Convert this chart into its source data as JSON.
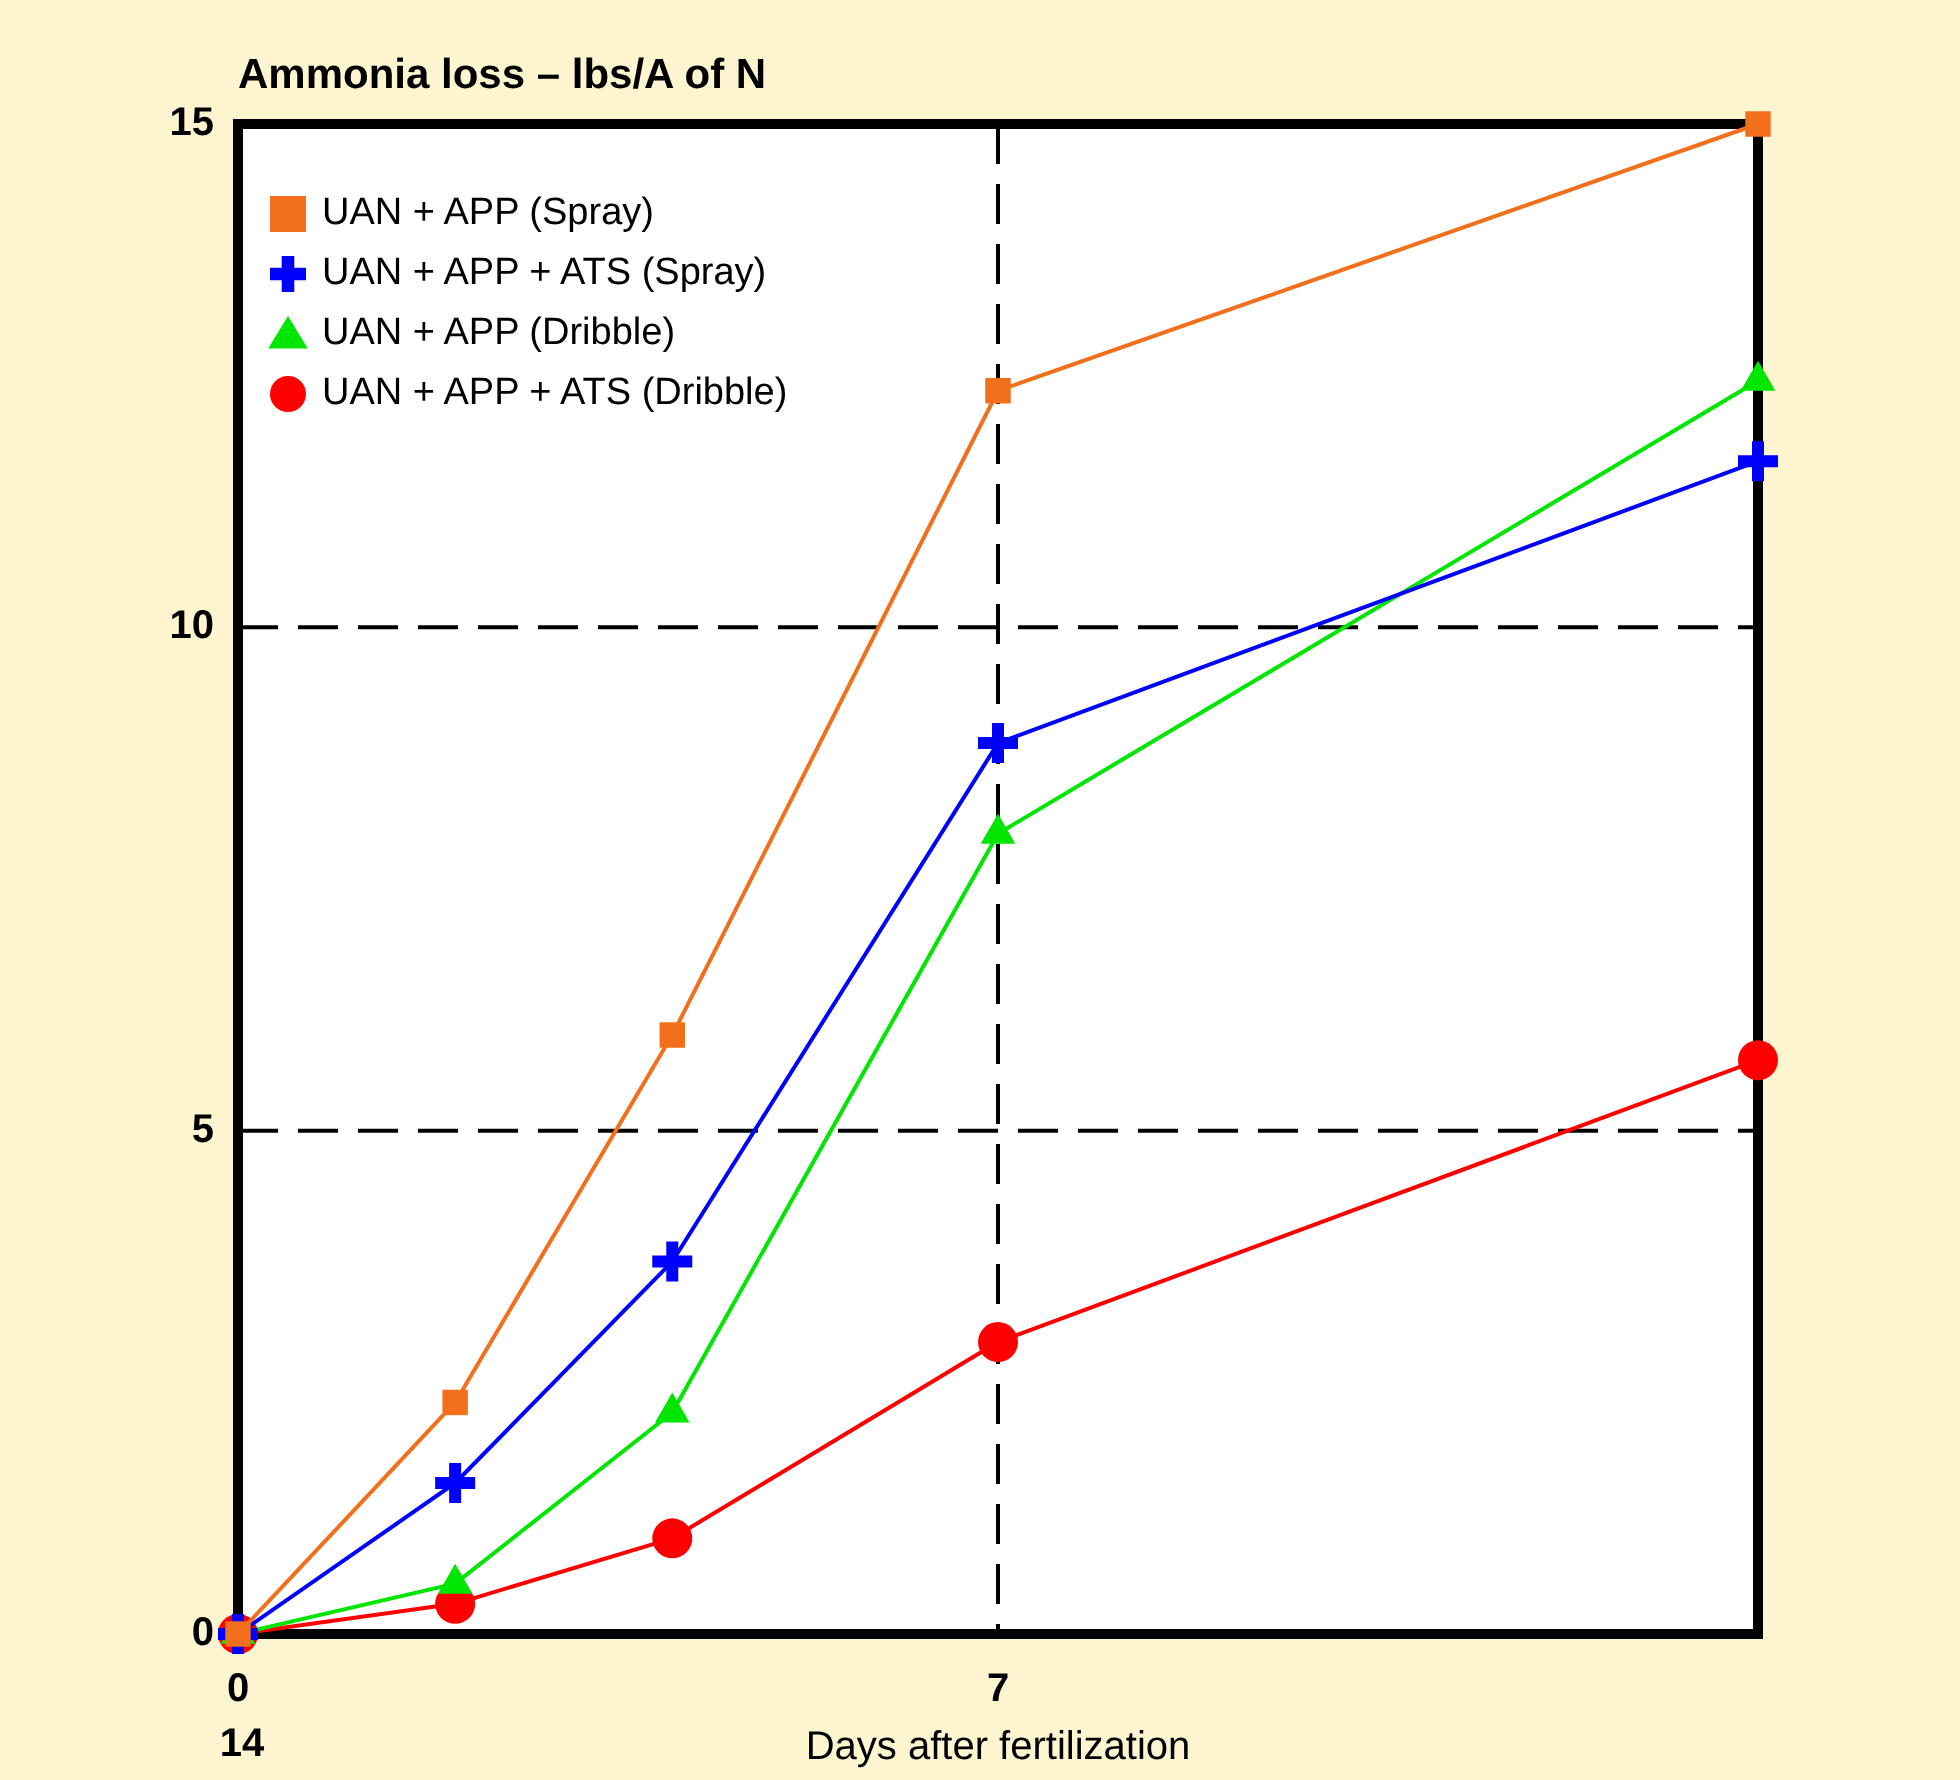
{
  "chart_data": {
    "type": "line",
    "title": "Ammonia loss – lbs/A of N",
    "xlabel": "Days after fertilization",
    "x": [
      0,
      2,
      4,
      7,
      14
    ],
    "series": [
      {
        "name": "UAN + APP (Spray)",
        "color": "#f26f1b",
        "marker": "square",
        "values": [
          0,
          2.3,
          5.95,
          12.35,
          15
        ]
      },
      {
        "name": "UAN + APP + ATS (Spray)",
        "color": "#0000ff",
        "marker": "cross",
        "values": [
          0,
          1.5,
          3.7,
          8.85,
          11.65
        ]
      },
      {
        "name": "UAN + APP (Dribble)",
        "color": "#00e600",
        "marker": "triangle",
        "values": [
          0,
          0.5,
          2.2,
          7.95,
          12.45
        ]
      },
      {
        "name": "UAN + APP + ATS (Dribble)",
        "color": "#ff0000",
        "marker": "circle",
        "values": [
          0,
          0.3,
          0.95,
          2.9,
          5.7
        ]
      }
    ],
    "xlim": [
      0,
      14
    ],
    "xticks": [
      0,
      7
    ],
    "ylim": [
      0,
      15
    ],
    "yticks": [
      0,
      5,
      10,
      15
    ],
    "annotations": [
      "14"
    ],
    "grid": true,
    "legend": "top left",
    "line_style": "solid"
  }
}
